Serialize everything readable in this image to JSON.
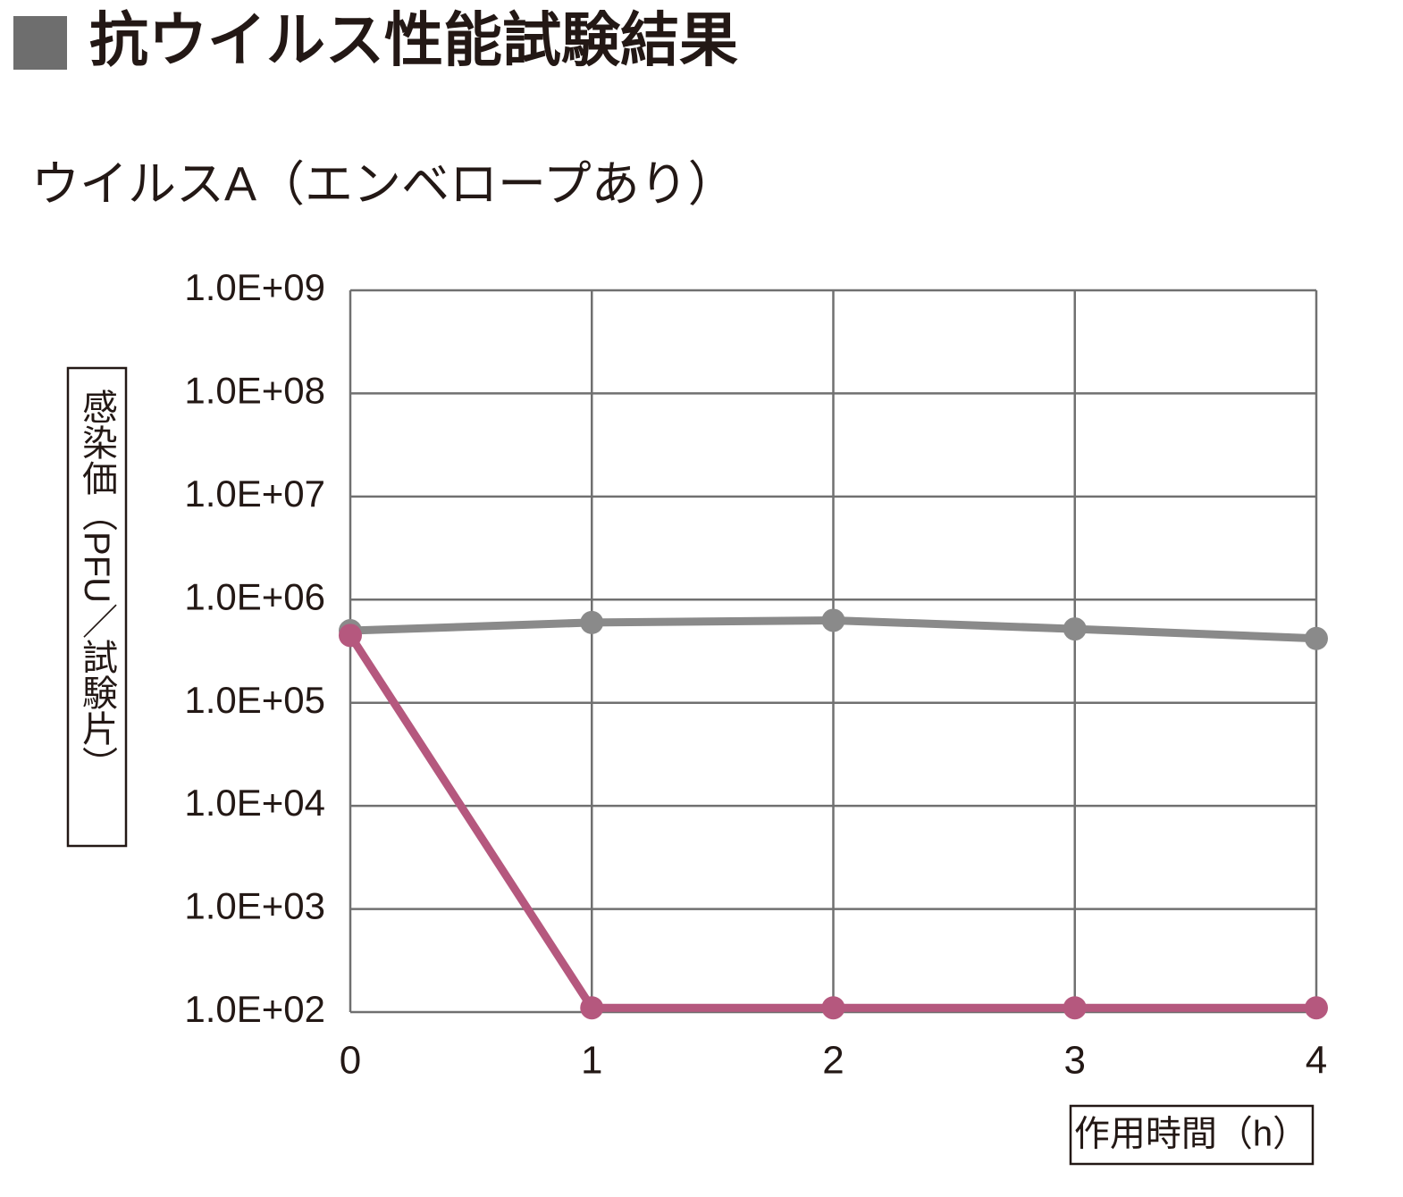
{
  "chart_data": {
    "type": "line",
    "title": "抗ウイルス性能試験結果",
    "subtitle": "ウイルスA（エンベロープあり）",
    "y_label": "感染価（PFU／試験片）",
    "x_label": "作用時間（h）",
    "x": [
      0,
      1,
      2,
      3,
      4
    ],
    "xlim": [
      0,
      4
    ],
    "xticks": [
      0,
      1,
      2,
      3,
      4
    ],
    "yscale": "log",
    "ylim": [
      100,
      1000000000
    ],
    "yticks": [
      {
        "value": 100,
        "label": "1.0E+02"
      },
      {
        "value": 1000,
        "label": "1.0E+03"
      },
      {
        "value": 10000,
        "label": "1.0E+04"
      },
      {
        "value": 100000,
        "label": "1.0E+05"
      },
      {
        "value": 1000000,
        "label": "1.0E+06"
      },
      {
        "value": 10000000,
        "label": "1.0E+07"
      },
      {
        "value": 100000000,
        "label": "1.0E+08"
      },
      {
        "value": 1000000000,
        "label": "1.0E+09"
      }
    ],
    "grid": true,
    "series": [
      {
        "color": "#8a8a8a",
        "values": [
          500000,
          600000,
          630000,
          520000,
          420000
        ]
      },
      {
        "color": "#b5587e",
        "values": [
          450000,
          110,
          110,
          110,
          110
        ]
      }
    ]
  }
}
